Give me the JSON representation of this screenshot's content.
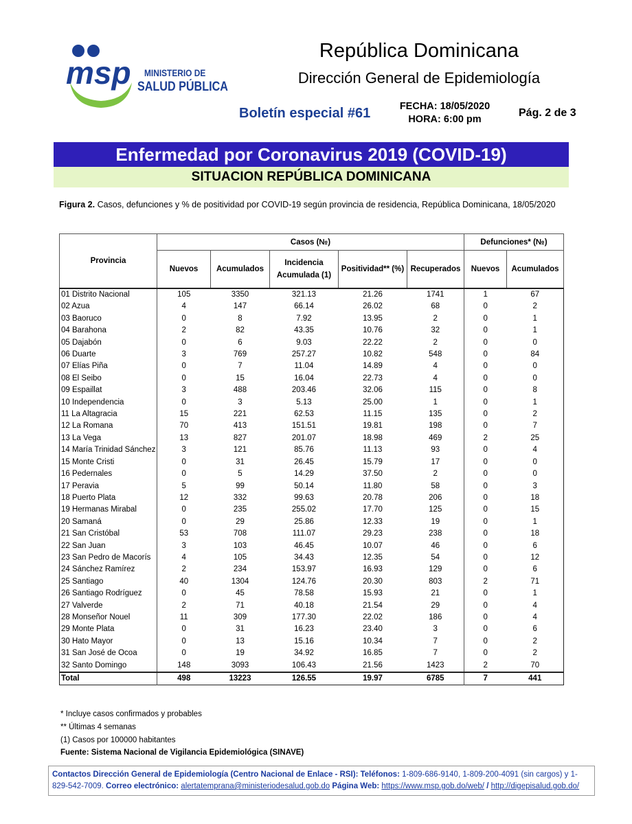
{
  "header": {
    "logo_mark": "msp",
    "logo_line1": "MINISTERIO DE",
    "logo_line2": "SALUD PÚBLICA",
    "title": "República Dominicana",
    "subtitle": "Dirección General de Epidemiología",
    "bulletin": "Boletín especial #61",
    "date": "FECHA: 18/05/2020",
    "time": "HORA: 6:00 pm",
    "page": "Pág. 2 de 3"
  },
  "banner": {
    "title": "Enfermedad por Coronavirus 2019 (COVID-19)",
    "subtitle": "SITUACION REPÚBLICA DOMINICANA"
  },
  "caption": {
    "label": "Figura 2.",
    "text": "Casos, defunciones y % de positividad por COVID-19 según provincia de residencia, República Dominicana, 18/05/2020"
  },
  "table": {
    "group_headers": [
      "Provincia",
      "Casos (№)",
      "Defunciones* (№)"
    ],
    "columns": [
      "Nuevos",
      "Acumulados",
      "Incidencia Acumulada (1)",
      "Positividad** (%)",
      "Recuperados",
      "Nuevos",
      "Acumulados"
    ],
    "rows": [
      [
        "01 Distrito Nacional",
        "105",
        "3350",
        "321.13",
        "21.26",
        "1741",
        "1",
        "67"
      ],
      [
        "02 Azua",
        "4",
        "147",
        "66.14",
        "26.02",
        "68",
        "0",
        "2"
      ],
      [
        "03 Baoruco",
        "0",
        "8",
        "7.92",
        "13.95",
        "2",
        "0",
        "1"
      ],
      [
        "04 Barahona",
        "2",
        "82",
        "43.35",
        "10.76",
        "32",
        "0",
        "1"
      ],
      [
        "05 Dajabón",
        "0",
        "6",
        "9.03",
        "22.22",
        "2",
        "0",
        "0"
      ],
      [
        "06 Duarte",
        "3",
        "769",
        "257.27",
        "10.82",
        "548",
        "0",
        "84"
      ],
      [
        "07 Elías Piña",
        "0",
        "7",
        "11.04",
        "14.89",
        "4",
        "0",
        "0"
      ],
      [
        "08 El Seibo",
        "0",
        "15",
        "16.04",
        "22.73",
        "4",
        "0",
        "0"
      ],
      [
        "09 Espaillat",
        "3",
        "488",
        "203.46",
        "32.06",
        "115",
        "0",
        "8"
      ],
      [
        "10 Independencia",
        "0",
        "3",
        "5.13",
        "25.00",
        "1",
        "0",
        "1"
      ],
      [
        "11 La Altagracia",
        "15",
        "221",
        "62.53",
        "11.15",
        "135",
        "0",
        "2"
      ],
      [
        "12 La Romana",
        "70",
        "413",
        "151.51",
        "19.81",
        "198",
        "0",
        "7"
      ],
      [
        "13 La Vega",
        "13",
        "827",
        "201.07",
        "18.98",
        "469",
        "2",
        "25"
      ],
      [
        "14 María Trinidad Sánchez",
        "3",
        "121",
        "85.76",
        "11.13",
        "93",
        "0",
        "4"
      ],
      [
        "15 Monte Cristi",
        "0",
        "31",
        "26.45",
        "15.79",
        "17",
        "0",
        "0"
      ],
      [
        "16 Pedernales",
        "0",
        "5",
        "14.29",
        "37.50",
        "2",
        "0",
        "0"
      ],
      [
        "17 Peravia",
        "5",
        "99",
        "50.14",
        "11.80",
        "58",
        "0",
        "3"
      ],
      [
        "18 Puerto Plata",
        "12",
        "332",
        "99.63",
        "20.78",
        "206",
        "0",
        "18"
      ],
      [
        "19 Hermanas Mirabal",
        "0",
        "235",
        "255.02",
        "17.70",
        "125",
        "0",
        "15"
      ],
      [
        "20 Samaná",
        "0",
        "29",
        "25.86",
        "12.33",
        "19",
        "0",
        "1"
      ],
      [
        "21 San Cristóbal",
        "53",
        "708",
        "111.07",
        "29.23",
        "238",
        "0",
        "18"
      ],
      [
        "22 San Juan",
        "3",
        "103",
        "46.45",
        "10.07",
        "46",
        "0",
        "6"
      ],
      [
        "23 San Pedro de Macorís",
        "4",
        "105",
        "34.43",
        "12.35",
        "54",
        "0",
        "12"
      ],
      [
        "24 Sánchez Ramírez",
        "2",
        "234",
        "153.97",
        "16.93",
        "129",
        "0",
        "6"
      ],
      [
        "25 Santiago",
        "40",
        "1304",
        "124.76",
        "20.30",
        "803",
        "2",
        "71"
      ],
      [
        "26 Santiago Rodríguez",
        "0",
        "45",
        "78.58",
        "15.93",
        "21",
        "0",
        "1"
      ],
      [
        "27 Valverde",
        "2",
        "71",
        "40.18",
        "21.54",
        "29",
        "0",
        "4"
      ],
      [
        "28 Monseñor Nouel",
        "11",
        "309",
        "177.30",
        "22.02",
        "186",
        "0",
        "4"
      ],
      [
        "29 Monte Plata",
        "0",
        "31",
        "16.23",
        "23.40",
        "3",
        "0",
        "6"
      ],
      [
        "30 Hato Mayor",
        "0",
        "13",
        "15.16",
        "10.34",
        "7",
        "0",
        "2"
      ],
      [
        "31 San José de Ocoa",
        "0",
        "19",
        "34.92",
        "16.85",
        "7",
        "0",
        "2"
      ],
      [
        "32 Santo Domingo",
        "148",
        "3093",
        "106.43",
        "21.56",
        "1423",
        "2",
        "70"
      ]
    ],
    "total": [
      "Total",
      "498",
      "13223",
      "126.55",
      "19.97",
      "6785",
      "7",
      "441"
    ]
  },
  "notes": [
    "* Incluye casos confirmados y probables",
    "** Últimas 4 semanas",
    "(1) Casos por 100000 habitantes"
  ],
  "source": "Fuente: Sistema Nacional de Vigilancia Epidemiológica (SINAVE)",
  "contact": {
    "lead": "Contactos Dirección General de Epidemiología (Centro Nacional de Enlace - RSI):",
    "phones_label": "Teléfonos:",
    "phones": "1-809-686-9140, 1-809-200-4091 (sin cargos) y 1-829-542-7009.",
    "email_label": "Correo electrónico:",
    "email": "alertatemprana@ministeriodesalud.gob.do",
    "web_label": "Página Web:",
    "web1": "https://www.msp.gob.do/web/",
    "sep": "/",
    "web2": "http://digepisalud.gob.do/"
  }
}
